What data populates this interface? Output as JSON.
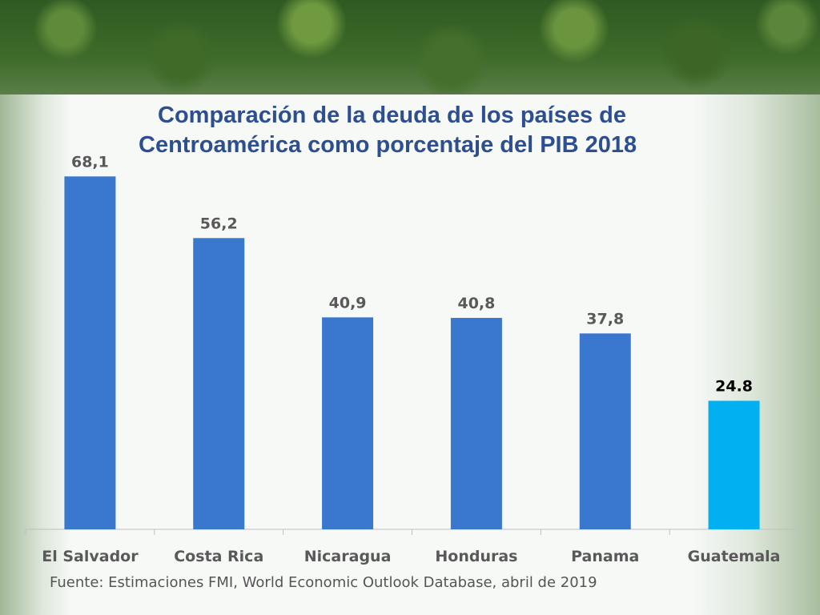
{
  "chart_data": {
    "type": "bar",
    "title": "Comparación de la deuda de los países de Centroamérica como porcentaje del PIB 2018",
    "categories": [
      "El Salvador",
      "Costa Rica",
      "Nicaragua",
      "Honduras",
      "Panama",
      "Guatemala"
    ],
    "values": [
      68.1,
      56.2,
      40.9,
      40.8,
      37.8,
      24.8
    ],
    "data_labels": [
      "68,1",
      "56,2",
      "40,9",
      "40,8",
      "37,8",
      "24.8"
    ],
    "ylim": [
      0,
      70
    ],
    "grid": false,
    "legend": "none",
    "colors": {
      "default_bar": "#3a78cf",
      "highlight_bar": "#00b0f0",
      "default_label": "#595959",
      "highlight_label": "#000000",
      "axis": "#bfbfbf"
    },
    "highlight_index": 5
  },
  "source": "Fuente: Estimaciones  FMI, World Economic Outlook Database, abril de 2019"
}
